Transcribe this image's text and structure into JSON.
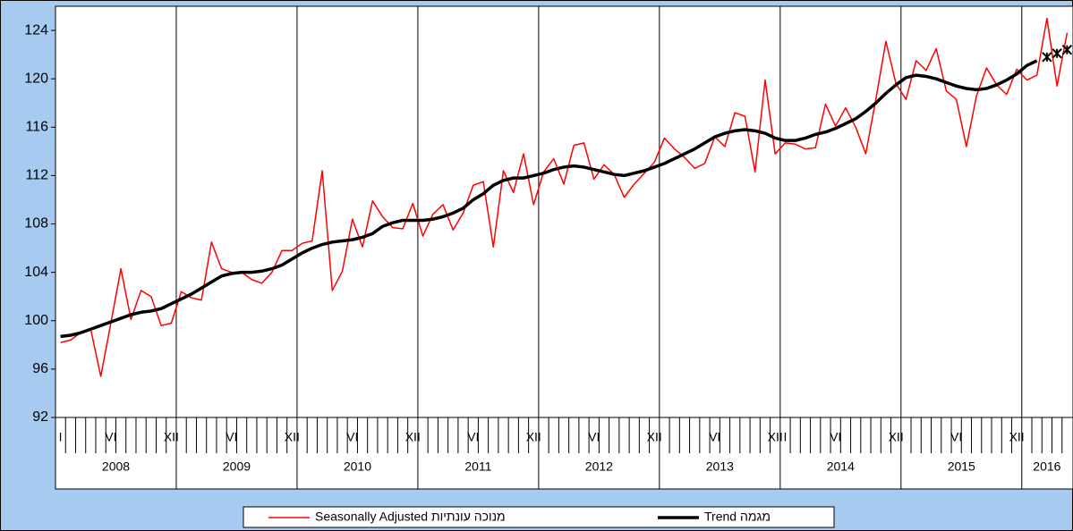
{
  "chart_data": {
    "type": "line",
    "categories": [
      "I",
      null,
      null,
      null,
      null,
      "VI",
      null,
      null,
      null,
      null,
      null,
      "XII",
      null,
      null,
      null,
      null,
      null,
      "VI",
      null,
      null,
      null,
      null,
      null,
      "XII",
      null,
      null,
      null,
      null,
      null,
      "VI",
      null,
      null,
      null,
      null,
      null,
      "XII",
      null,
      null,
      null,
      null,
      null,
      "VI",
      null,
      null,
      null,
      null,
      null,
      "XII",
      null,
      null,
      null,
      null,
      null,
      "VI",
      null,
      null,
      null,
      null,
      null,
      "XII",
      null,
      null,
      null,
      null,
      null,
      "VI",
      null,
      null,
      null,
      null,
      null,
      "XII",
      "I",
      null,
      null,
      null,
      null,
      "VI",
      null,
      null,
      null,
      null,
      null,
      "XII",
      null,
      null,
      null,
      null,
      null,
      "VI",
      null,
      null,
      null,
      null,
      null,
      "XII",
      null,
      null,
      null,
      null,
      null
    ],
    "years": [
      "2008",
      "2009",
      "2010",
      "2011",
      "2012",
      "2013",
      "2014",
      "2015",
      "2016"
    ],
    "series": [
      {
        "name": "Seasonally Adjusted מנוכה עונתיות",
        "color": "#ff0000",
        "width": 1.5,
        "values": [
          98.2,
          98.4,
          99.0,
          99.3,
          95.4,
          99.8,
          104.3,
          100.1,
          102.5,
          102.0,
          99.6,
          99.8,
          102.4,
          101.9,
          101.7,
          106.5,
          104.3,
          104.0,
          104.0,
          103.4,
          103.1,
          104.0,
          105.8,
          105.8,
          106.4,
          106.6,
          112.4,
          102.5,
          104.1,
          108.4,
          106.1,
          109.9,
          108.6,
          107.7,
          107.6,
          109.7,
          107.0,
          108.8,
          109.6,
          107.5,
          108.9,
          111.2,
          111.5,
          106.1,
          112.4,
          110.6,
          113.8,
          109.6,
          112.3,
          113.4,
          111.3,
          114.5,
          114.7,
          111.7,
          112.9,
          112.1,
          110.2,
          111.3,
          112.2,
          113.1,
          115.1,
          114.2,
          113.5,
          112.6,
          113.0,
          115.2,
          114.4,
          117.2,
          116.9,
          112.3,
          119.9,
          113.8,
          114.7,
          114.6,
          114.2,
          114.3,
          117.9,
          116.1,
          117.6,
          116.0,
          113.8,
          118.3,
          123.1,
          119.6,
          118.3,
          121.5,
          120.7,
          122.5,
          119.0,
          118.3,
          114.4,
          118.6,
          120.9,
          119.5,
          118.7,
          120.8,
          119.9,
          120.3,
          125.0,
          119.4,
          123.8
        ]
      },
      {
        "name": "Trend מגמה",
        "color": "#000000",
        "width": 3.5,
        "markers_from": 98,
        "values": [
          98.7,
          98.8,
          99.0,
          99.3,
          99.6,
          99.9,
          100.2,
          100.5,
          100.7,
          100.8,
          101.0,
          101.4,
          101.8,
          102.2,
          102.7,
          103.2,
          103.7,
          103.9,
          104.0,
          104.0,
          104.1,
          104.3,
          104.6,
          105.1,
          105.6,
          106.0,
          106.3,
          106.5,
          106.6,
          106.7,
          106.9,
          107.2,
          107.8,
          108.1,
          108.3,
          108.3,
          108.3,
          108.4,
          108.6,
          108.9,
          109.3,
          110.0,
          110.5,
          111.2,
          111.6,
          111.8,
          111.8,
          112.0,
          112.2,
          112.5,
          112.7,
          112.8,
          112.7,
          112.5,
          112.3,
          112.1,
          112.0,
          112.2,
          112.4,
          112.7,
          113.0,
          113.4,
          113.8,
          114.2,
          114.7,
          115.2,
          115.5,
          115.7,
          115.8,
          115.7,
          115.5,
          115.1,
          114.9,
          114.9,
          115.1,
          115.4,
          115.6,
          115.9,
          116.3,
          116.7,
          117.3,
          118.0,
          118.8,
          119.5,
          120.1,
          120.3,
          120.2,
          120.0,
          119.7,
          119.4,
          119.2,
          119.1,
          119.2,
          119.5,
          119.9,
          120.4,
          121.1,
          121.5,
          121.8,
          122.1,
          122.4
        ]
      }
    ],
    "ylim": [
      92,
      126
    ],
    "yticks": [
      92,
      96,
      100,
      104,
      108,
      112,
      116,
      120,
      124
    ],
    "grid": false
  }
}
